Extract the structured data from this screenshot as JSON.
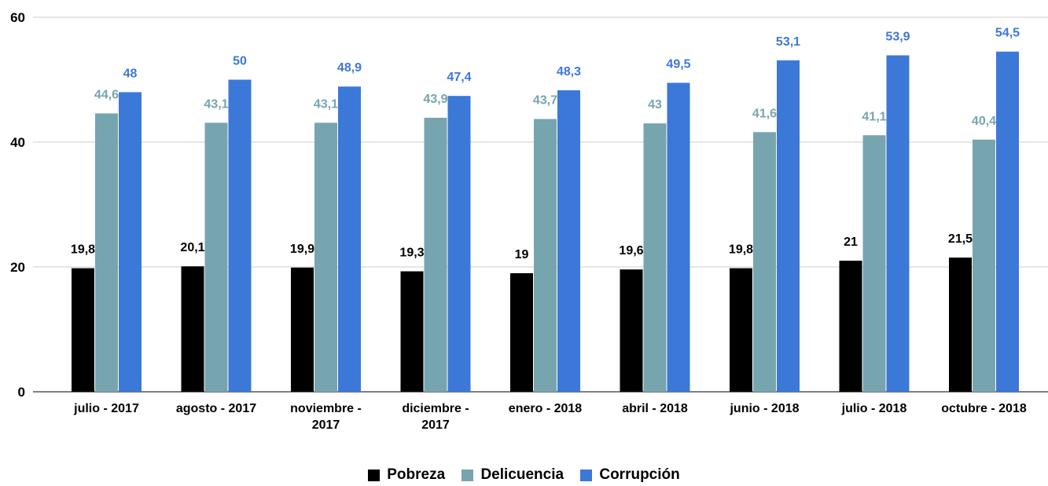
{
  "chart_data": {
    "type": "bar",
    "categories": [
      "julio - 2017",
      "agosto - 2017",
      "noviembre - 2017",
      "diciembre - 2017",
      "enero - 2018",
      "abril - 2018",
      "junio - 2018",
      "julio - 2018",
      "octubre - 2018"
    ],
    "category_lines": [
      [
        "julio - 2017"
      ],
      [
        "agosto - 2017"
      ],
      [
        "noviembre -",
        "2017"
      ],
      [
        "diciembre -",
        "2017"
      ],
      [
        "enero - 2018"
      ],
      [
        "abril - 2018"
      ],
      [
        "junio - 2018"
      ],
      [
        "julio - 2018"
      ],
      [
        "octubre - 2018"
      ]
    ],
    "series": [
      {
        "name": "Pobreza",
        "color": "#000000",
        "label_color": "#000000",
        "values": [
          19.8,
          20.1,
          19.9,
          19.3,
          19,
          19.6,
          19.8,
          21,
          21.5
        ],
        "labels": [
          "19,8",
          "20,1",
          "19,9",
          "19,3",
          "19",
          "19,6",
          "19,8",
          "21",
          "21,5"
        ]
      },
      {
        "name": "Delicuencia",
        "color": "#76a5af",
        "label_color": "#76a5af",
        "values": [
          44.6,
          43.1,
          43.1,
          43.9,
          43.7,
          43,
          41.6,
          41.1,
          40.4
        ],
        "labels": [
          "44,6",
          "43,1",
          "43,1",
          "43,9",
          "43,7",
          "43",
          "41,6",
          "41,1",
          "40,4"
        ]
      },
      {
        "name": "Corrupción",
        "color": "#3c78d8",
        "label_color": "#3c78d8",
        "values": [
          48,
          50,
          48.9,
          47.4,
          48.3,
          49.5,
          53.1,
          53.9,
          54.5
        ],
        "labels": [
          "48",
          "50",
          "48,9",
          "47,4",
          "48,3",
          "49,5",
          "53,1",
          "53,9",
          "54,5"
        ]
      }
    ],
    "ylim": [
      0,
      60
    ],
    "yticks": [
      0,
      20,
      40,
      60
    ],
    "grid": true,
    "legend_position": "bottom"
  }
}
